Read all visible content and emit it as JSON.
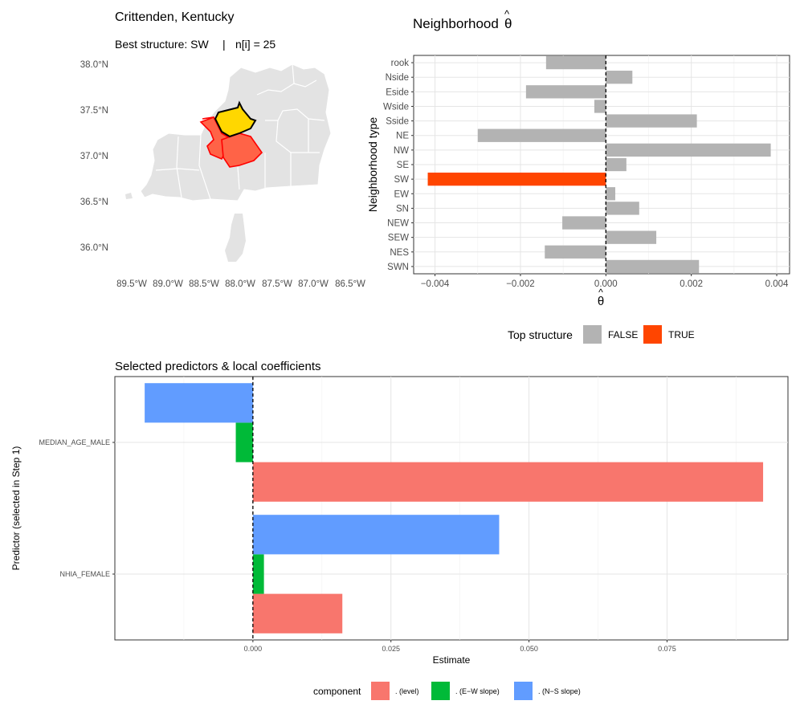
{
  "map_panel": {
    "title": "Crittenden, Kentucky",
    "subtitle_structure": "Best structure: SW",
    "subtitle_sep": "|",
    "subtitle_n": "n[i] = 25",
    "lat_ticks": [
      "38.0°N",
      "37.5°N",
      "37.0°N",
      "36.5°N",
      "36.0°N"
    ],
    "lon_ticks": [
      "89.5°W",
      "89.0°W",
      "88.5°W",
      "88.0°W",
      "87.5°W",
      "87.0°W",
      "86.5°W"
    ],
    "colors": {
      "base": "#e3e3e3",
      "focal": "#ffd700",
      "neighbors": "#ff6347",
      "border": "#ffffff"
    }
  },
  "chart_data": [
    {
      "type": "bar",
      "orientation": "horizontal",
      "title_text": "Neighborhood",
      "title_symbol": "θ",
      "title_hat": "^",
      "xlabel_symbol": "θ",
      "xlabel_hat": "^",
      "ylabel": "Neighborhood type",
      "categories": [
        "rook",
        "Nside",
        "Eside",
        "Wside",
        "Sside",
        "NE",
        "NW",
        "SE",
        "SW",
        "EW",
        "SN",
        "NEW",
        "SEW",
        "NES",
        "SWN"
      ],
      "values": [
        -0.0014,
        0.00062,
        -0.00187,
        -0.00027,
        0.00213,
        -0.003,
        0.00386,
        0.00048,
        -0.00417,
        0.00022,
        0.00078,
        -0.00102,
        0.00118,
        -0.00143,
        0.00218
      ],
      "top_structure": [
        false,
        false,
        false,
        false,
        false,
        false,
        false,
        false,
        true,
        false,
        false,
        false,
        false,
        false,
        false
      ],
      "xlim": [
        -0.0045,
        0.0043
      ],
      "x_ticks": [
        -0.004,
        -0.002,
        0,
        0.002,
        0.004
      ],
      "x_tick_labels": [
        "−0.004",
        "−0.002",
        "0.000",
        "0.002",
        "0.004"
      ],
      "legend": {
        "title": "Top structure",
        "items": [
          {
            "label": "FALSE",
            "color": "#b3b3b3"
          },
          {
            "label": "TRUE",
            "color": "#ff4500"
          }
        ]
      }
    },
    {
      "type": "bar",
      "orientation": "horizontal",
      "title": "Selected predictors & local coefficients",
      "xlabel": "Estimate",
      "ylabel": "Predictor (selected in Step 1)",
      "categories": [
        "MEDIAN_AGE_MALE",
        "NHIA_FEMALE"
      ],
      "series": [
        {
          "name": ". (level)",
          "color": "#f8766d",
          "values": [
            0.0924,
            0.0162
          ]
        },
        {
          "name": ". (E−W slope)",
          "color": "#00ba38",
          "values": [
            -0.0031,
            0.002
          ]
        },
        {
          "name": ". (N−S slope)",
          "color": "#619cff",
          "values": [
            -0.0196,
            0.0446
          ]
        }
      ],
      "xlim": [
        -0.025,
        0.0969
      ],
      "x_ticks": [
        0,
        0.025,
        0.05,
        0.075
      ],
      "x_tick_labels": [
        "0.000",
        "0.025",
        "0.050",
        "0.075"
      ],
      "legend": {
        "title": "component"
      }
    }
  ]
}
